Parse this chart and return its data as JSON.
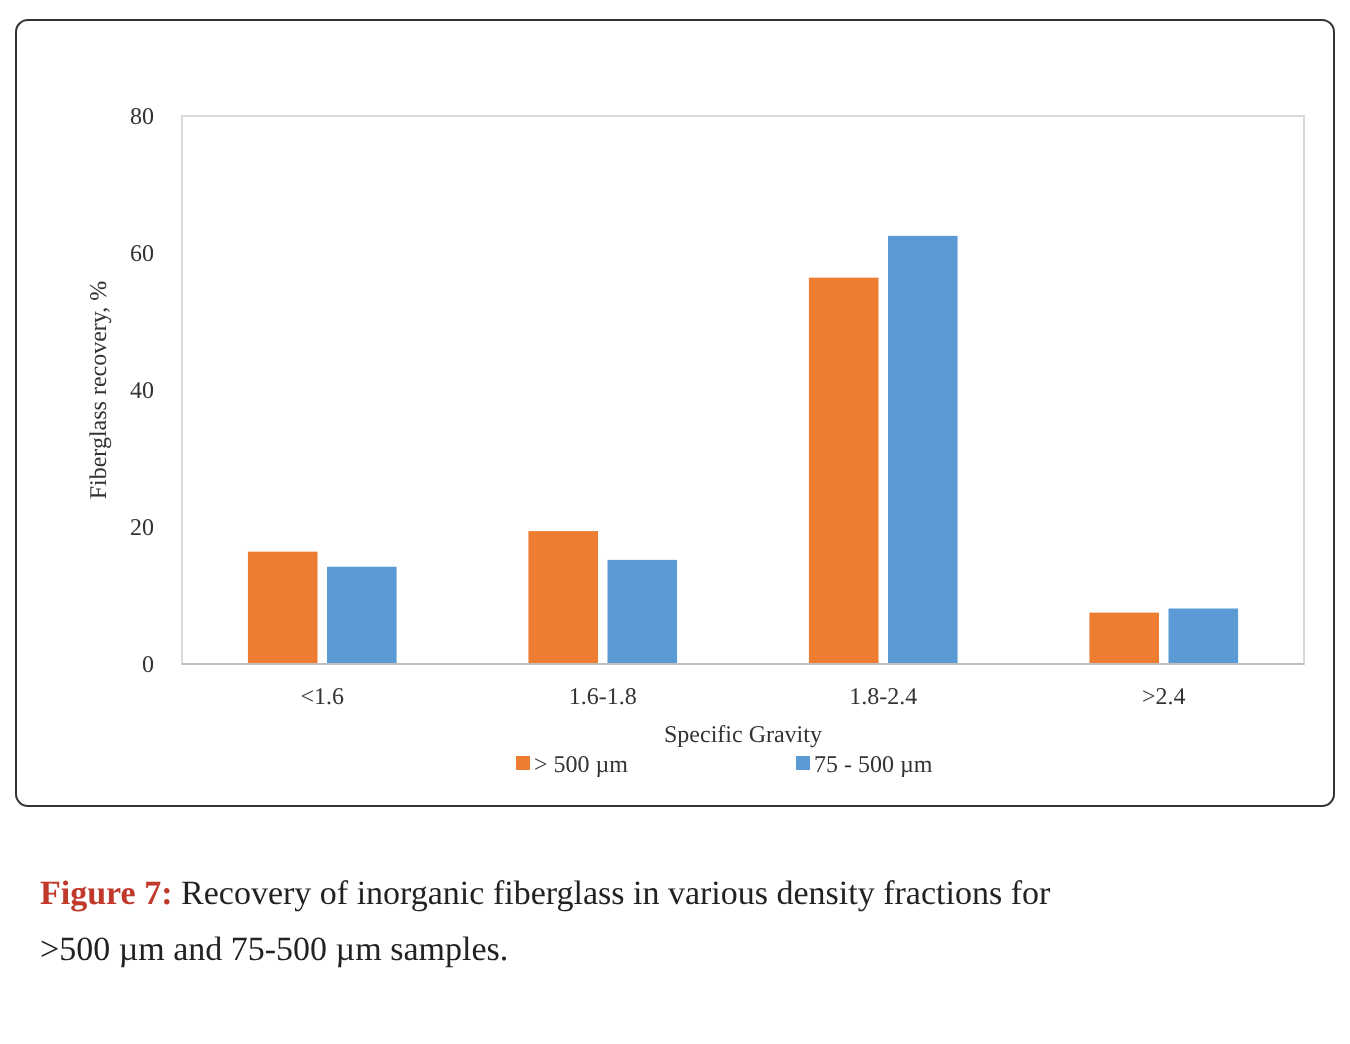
{
  "chart_data": {
    "type": "bar",
    "xlabel": "Specific Gravity",
    "ylabel": "Fiberglass recovery, %",
    "categories": [
      "<1.6",
      "1.6-1.8",
      "1.8-2.4",
      ">2.4"
    ],
    "series": [
      {
        "name": "> 500 µm",
        "color": "#ed7d31",
        "values": [
          16.4,
          19.4,
          56.4,
          7.5
        ]
      },
      {
        "name": "75 - 500 µm",
        "color": "#5b9bd5",
        "values": [
          14.2,
          15.2,
          62.5,
          8.1
        ]
      }
    ],
    "ylim": [
      0,
      80
    ],
    "yticks": [
      0,
      20,
      40,
      60,
      80
    ],
    "grid": false,
    "legend": "bottom",
    "annotations": [
      "Figure 7: Recovery of inorganic fiberglass in various density fractions for >500 µm and 75-500 µm samples."
    ]
  }
}
